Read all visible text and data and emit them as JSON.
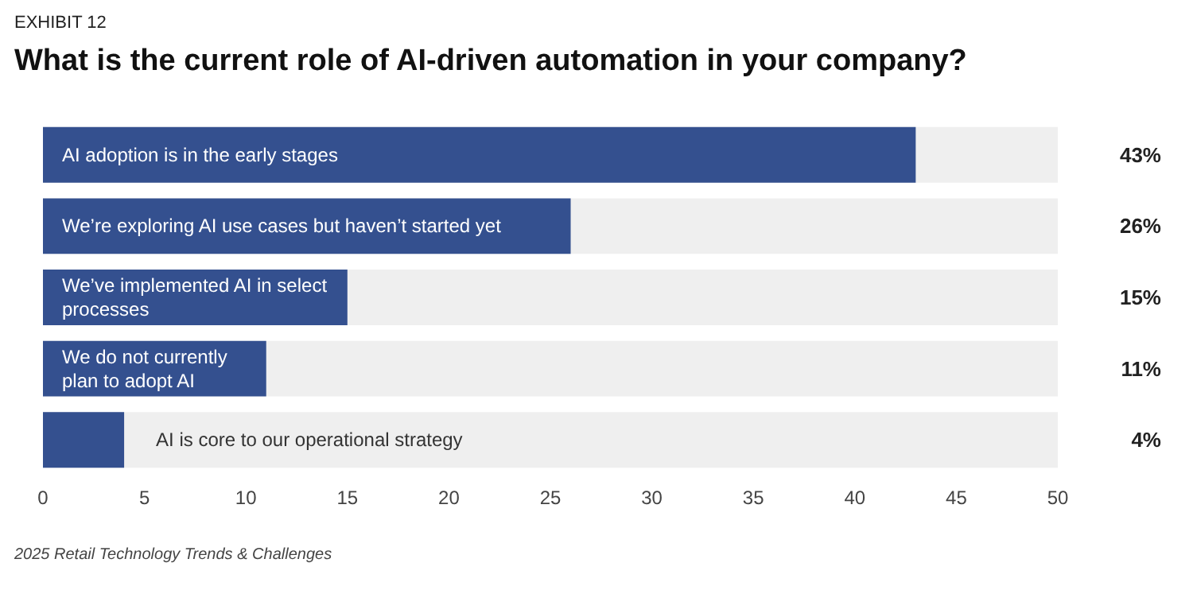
{
  "chart_data": {
    "type": "bar",
    "orientation": "horizontal",
    "subtitle": "EXHIBIT 12",
    "title": "What is the current role of AI-driven automation in your company?",
    "categories": [
      "AI adoption is in the early stages",
      "We’re exploring AI use cases but haven’t started yet",
      "We’ve implemented AI in select processes",
      "We do not currently plan to adopt AI",
      "AI is core to our operational strategy"
    ],
    "values": [
      43,
      26,
      15,
      11,
      4
    ],
    "value_labels": [
      "43%",
      "26%",
      "15%",
      "11%",
      "4%"
    ],
    "color": "#34508f",
    "xlim": [
      0,
      50
    ],
    "xticks": [
      0,
      5,
      10,
      15,
      20,
      25,
      30,
      35,
      40,
      45,
      50
    ],
    "grid": false,
    "annotations": [
      "2025 Retail Technology Trends & Challenges"
    ]
  }
}
